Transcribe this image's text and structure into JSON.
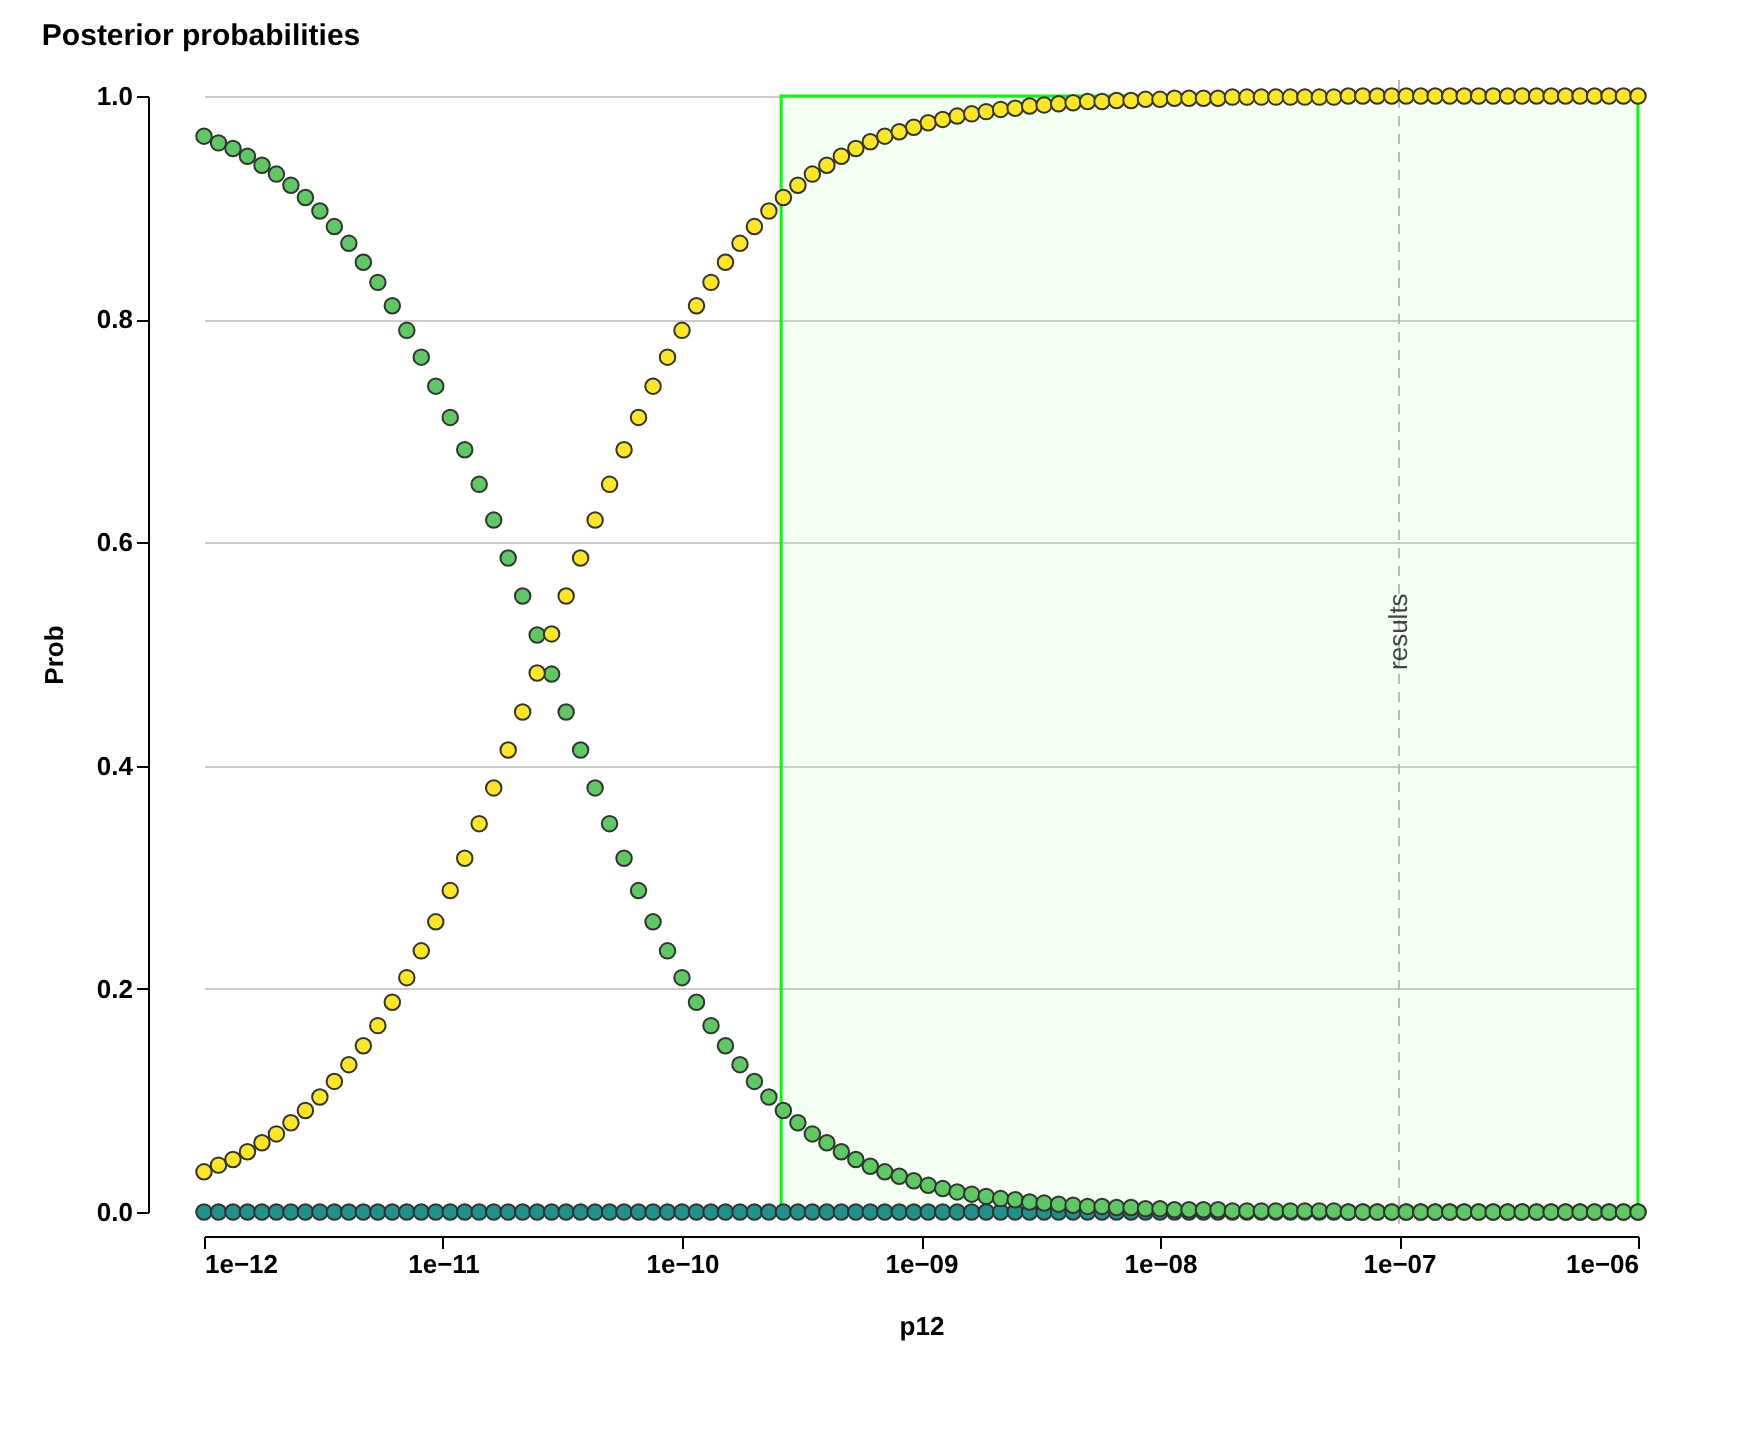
{
  "chart_data": {
    "type": "scatter",
    "title": "Posterior probabilities",
    "xlabel": "p12",
    "ylabel": "Prob",
    "x": [
      1e-12,
      1.15e-12,
      1.322e-12,
      1.52e-12,
      1.748e-12,
      2.009e-12,
      2.31e-12,
      2.656e-12,
      3.054e-12,
      3.511e-12,
      4.037e-12,
      4.642e-12,
      5.337e-12,
      6.136e-12,
      7.055e-12,
      8.111e-12,
      9.326e-12,
      1.072e-11,
      1.233e-11,
      1.417e-11,
      1.63e-11,
      1.874e-11,
      2.154e-11,
      2.477e-11,
      2.848e-11,
      3.275e-11,
      3.765e-11,
      4.329e-11,
      4.977e-11,
      5.722e-11,
      6.579e-11,
      7.565e-11,
      8.697e-11,
      1e-10,
      1.15e-10,
      1.322e-10,
      1.52e-10,
      1.748e-10,
      2.009e-10,
      2.31e-10,
      2.656e-10,
      3.054e-10,
      3.511e-10,
      4.037e-10,
      4.642e-10,
      5.337e-10,
      6.136e-10,
      7.055e-10,
      8.111e-10,
      9.326e-10,
      1.072e-09,
      1.233e-09,
      1.417e-09,
      1.63e-09,
      1.874e-09,
      2.154e-09,
      2.477e-09,
      2.848e-09,
      3.275e-09,
      3.765e-09,
      4.329e-09,
      4.977e-09,
      5.722e-09,
      6.579e-09,
      7.565e-09,
      8.697e-09,
      1e-08,
      1.15e-08,
      1.322e-08,
      1.52e-08,
      1.748e-08,
      2.009e-08,
      2.31e-08,
      2.656e-08,
      3.054e-08,
      3.511e-08,
      4.037e-08,
      4.642e-08,
      5.337e-08,
      6.136e-08,
      7.055e-08,
      8.111e-08,
      9.326e-08,
      1.072e-07,
      1.233e-07,
      1.417e-07,
      1.63e-07,
      1.874e-07,
      2.154e-07,
      2.477e-07,
      2.848e-07,
      3.275e-07,
      3.765e-07,
      4.329e-07,
      4.977e-07,
      5.722e-07,
      6.579e-07,
      7.565e-07,
      8.697e-07,
      1e-06
    ],
    "series": [
      {
        "color": "#21918c",
        "values": [
          0,
          0,
          0,
          0,
          0,
          0,
          0,
          0,
          0,
          0,
          0,
          0,
          0,
          0,
          0,
          0,
          0,
          0,
          0,
          0,
          0,
          0,
          0,
          0,
          0,
          0,
          0,
          0,
          0,
          0,
          0,
          0,
          0,
          0,
          0,
          0,
          0,
          0,
          0,
          0,
          0,
          0,
          0,
          0,
          0,
          0,
          0,
          0,
          0,
          0,
          0,
          0,
          0,
          0,
          0,
          0,
          0,
          0,
          0,
          0,
          0,
          0,
          0,
          0,
          0,
          0,
          0,
          0,
          0,
          0,
          0,
          0,
          0,
          0,
          0,
          0,
          0,
          0,
          0,
          0,
          0,
          0,
          0,
          0,
          0,
          0,
          0,
          0,
          0,
          0,
          0,
          0,
          0,
          0,
          0,
          0,
          0,
          0,
          0,
          0
        ]
      },
      {
        "color": "#5ec962",
        "values": [
          0.964,
          0.958,
          0.953,
          0.946,
          0.938,
          0.93,
          0.92,
          0.909,
          0.897,
          0.883,
          0.868,
          0.851,
          0.833,
          0.812,
          0.79,
          0.766,
          0.74,
          0.712,
          0.683,
          0.652,
          0.62,
          0.586,
          0.552,
          0.517,
          0.482,
          0.448,
          0.414,
          0.38,
          0.348,
          0.317,
          0.288,
          0.26,
          0.234,
          0.21,
          0.188,
          0.167,
          0.149,
          0.132,
          0.117,
          0.103,
          0.091,
          0.08,
          0.07,
          0.062,
          0.054,
          0.047,
          0.041,
          0.036,
          0.032,
          0.028,
          0.024,
          0.021,
          0.018,
          0.016,
          0.014,
          0.012,
          0.011,
          0.009,
          0.008,
          0.007,
          0.006,
          0.005,
          0.005,
          0.004,
          0.004,
          0.003,
          0.003,
          0.002,
          0.002,
          0.002,
          0.002,
          0.001,
          0.001,
          0.001,
          0.001,
          0.001,
          0.001,
          0.001,
          0.001,
          0,
          0,
          0,
          0,
          0,
          0,
          0,
          0,
          0,
          0,
          0,
          0,
          0,
          0,
          0,
          0,
          0,
          0,
          0,
          0,
          0
        ]
      },
      {
        "color": "#fde725",
        "values": [
          0.036,
          0.042,
          0.047,
          0.054,
          0.062,
          0.07,
          0.08,
          0.091,
          0.103,
          0.117,
          0.132,
          0.149,
          0.167,
          0.188,
          0.21,
          0.234,
          0.26,
          0.288,
          0.317,
          0.348,
          0.38,
          0.414,
          0.448,
          0.483,
          0.518,
          0.552,
          0.586,
          0.62,
          0.652,
          0.683,
          0.712,
          0.74,
          0.766,
          0.79,
          0.812,
          0.833,
          0.851,
          0.868,
          0.883,
          0.897,
          0.909,
          0.92,
          0.93,
          0.938,
          0.946,
          0.953,
          0.959,
          0.964,
          0.968,
          0.972,
          0.976,
          0.979,
          0.982,
          0.984,
          0.986,
          0.988,
          0.989,
          0.991,
          0.992,
          0.993,
          0.994,
          0.995,
          0.995,
          0.996,
          0.996,
          0.997,
          0.997,
          0.998,
          0.998,
          0.998,
          0.998,
          0.999,
          0.999,
          0.999,
          0.999,
          0.999,
          0.999,
          0.999,
          0.999,
          1,
          1,
          1,
          1,
          1,
          1,
          1,
          1,
          1,
          1,
          1,
          1,
          1,
          1,
          1,
          1,
          1,
          1,
          1,
          1,
          1
        ]
      }
    ],
    "log": "x",
    "xlim": [
      1e-12,
      1e-06
    ],
    "xticks": [
      {
        "value": 1e-12,
        "label": "1e−12"
      },
      {
        "value": 1e-11,
        "label": "1e−11"
      },
      {
        "value": 1e-10,
        "label": "1e−10"
      },
      {
        "value": 1e-09,
        "label": "1e−09"
      },
      {
        "value": 1e-08,
        "label": "1e−08"
      },
      {
        "value": 1e-07,
        "label": "1e−07"
      },
      {
        "value": 1e-06,
        "label": "1e−06"
      }
    ],
    "ylim": [
      0,
      1
    ],
    "yticks": [
      {
        "value": 0,
        "label": "0.0"
      },
      {
        "value": 0.2,
        "label": "0.2"
      },
      {
        "value": 0.4,
        "label": "0.4"
      },
      {
        "value": 0.6,
        "label": "0.6"
      },
      {
        "value": 0.8,
        "label": "0.8"
      },
      {
        "value": 1,
        "label": "1.0"
      }
    ],
    "grid": "y",
    "marker": "circle",
    "ref_lines": [
      {
        "axis": "x",
        "value": 1e-07,
        "label": "results",
        "color": "#bbbbbb",
        "line_style": "dashed"
      }
    ],
    "bands": [
      {
        "axis": "x",
        "from": 2.6e-10,
        "to": 1e-06,
        "color": "#00ff00"
      }
    ]
  }
}
